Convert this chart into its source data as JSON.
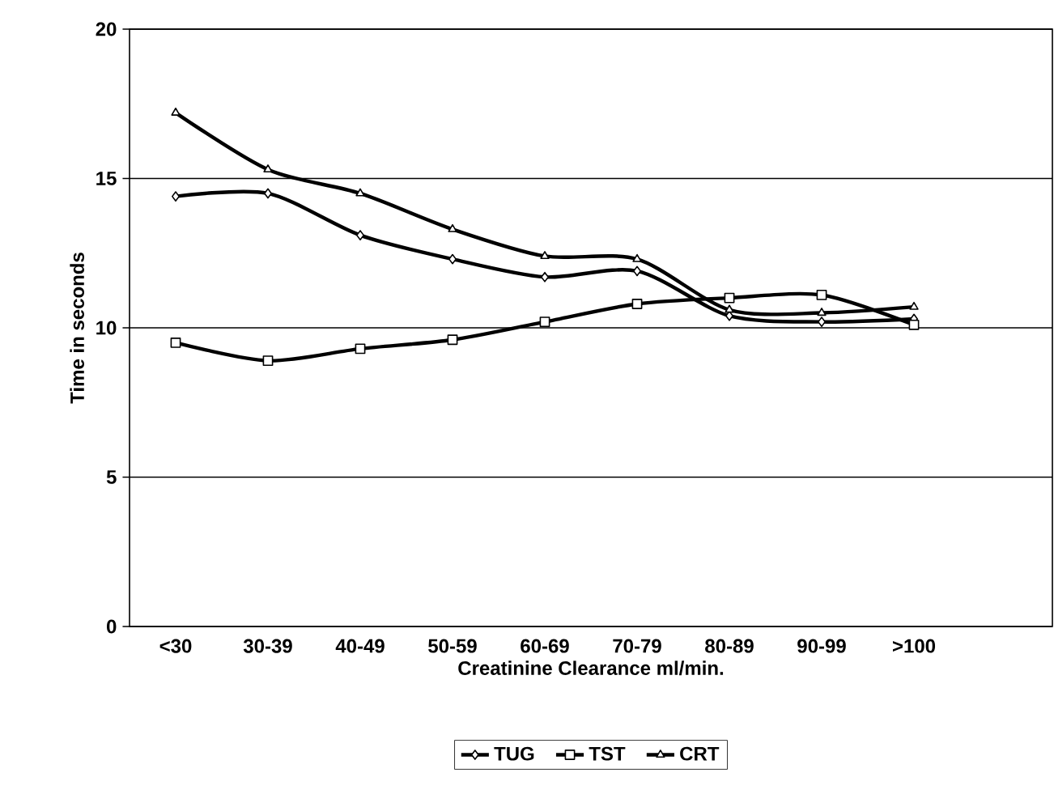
{
  "chart_data": {
    "type": "line",
    "xlabel": "Creatinine Clearance ml/min.",
    "ylabel": "Time in seconds",
    "categories": [
      "<30",
      "30-39",
      "40-49",
      "50-59",
      "60-69",
      "70-79",
      "80-89",
      "90-99",
      ">100",
      null
    ],
    "series": [
      {
        "name": "TUG",
        "color": "#000000",
        "marker": "diamond",
        "values": [
          14.4,
          14.5,
          13.1,
          12.3,
          11.7,
          11.9,
          10.4,
          10.2,
          10.3,
          null
        ]
      },
      {
        "name": "TST",
        "color": "#000000",
        "marker": "square",
        "values": [
          9.5,
          8.9,
          9.3,
          9.6,
          10.2,
          10.8,
          11.0,
          11.1,
          10.1,
          null
        ]
      },
      {
        "name": "CRT",
        "color": "#000000",
        "marker": "triangle",
        "values": [
          17.2,
          15.3,
          14.5,
          13.3,
          12.4,
          12.3,
          10.6,
          10.5,
          10.7,
          null
        ]
      }
    ],
    "ylim": [
      0,
      20
    ],
    "yticks": [
      0,
      5,
      10,
      15,
      20
    ],
    "grid": "y",
    "legend": "bottom",
    "line_style": "solid"
  }
}
